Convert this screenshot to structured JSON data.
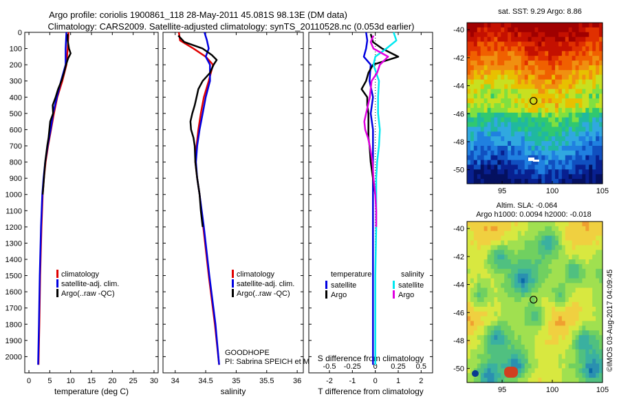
{
  "header": {
    "title_line1": "Argo profile: coriolis 1900861_118 28-May-2011 45.081S 98.13E (DM data)",
    "title_line2": "Climatology: CARS2009. Satellite-adjusted climatology: synTS_20110528.nc (0.053d earlier)"
  },
  "chart_data": [
    {
      "id": "temperature",
      "type": "line",
      "xlabel": "temperature (deg C)",
      "ylabel": "",
      "xlim": [
        -1,
        31
      ],
      "ylim": [
        2100,
        0
      ],
      "x_ticks": [
        0,
        5,
        10,
        15,
        20,
        25,
        30
      ],
      "y_ticks": [
        0,
        100,
        200,
        300,
        400,
        500,
        600,
        700,
        800,
        900,
        1000,
        1100,
        1200,
        1300,
        1400,
        1500,
        1600,
        1700,
        1800,
        1900,
        2000
      ],
      "legend": [
        "climatology",
        "satellite-adj. clim.",
        "Argo(..raw -QC)"
      ],
      "series": [
        {
          "name": "climatology",
          "color": "#e00000",
          "depth": [
            0,
            100,
            200,
            300,
            400,
            500,
            600,
            700,
            800,
            900,
            1000,
            1200,
            1500,
            1800,
            2050
          ],
          "values": [
            9.5,
            9.3,
            9.0,
            8.0,
            6.8,
            6.0,
            5.3,
            4.6,
            4.0,
            3.6,
            3.3,
            3.0,
            2.7,
            2.5,
            2.3
          ]
        },
        {
          "name": "satellite-adj. clim.",
          "color": "#0000e0",
          "depth": [
            0,
            100,
            200,
            300,
            400,
            500,
            600,
            700,
            800,
            900,
            1000,
            1200,
            1500,
            1800,
            2050
          ],
          "values": [
            9.0,
            8.8,
            8.8,
            7.7,
            6.7,
            5.8,
            5.2,
            4.5,
            3.9,
            3.5,
            3.2,
            2.9,
            2.6,
            2.4,
            2.2
          ]
        },
        {
          "name": "Argo(..raw -QC)",
          "color": "#000000",
          "depth": [
            10,
            50,
            100,
            130,
            160,
            200,
            250,
            300,
            350,
            400,
            450,
            500,
            550,
            600,
            650,
            700,
            800,
            900,
            1000
          ],
          "values": [
            9.3,
            9.3,
            9.6,
            10.0,
            9.4,
            8.9,
            8.4,
            7.8,
            7.0,
            6.4,
            5.7,
            5.8,
            5.1,
            4.9,
            4.7,
            4.4,
            3.9,
            3.6,
            3.3
          ]
        }
      ]
    },
    {
      "id": "salinity",
      "type": "line",
      "xlabel": "salinity",
      "ylabel": "",
      "xlim": [
        33.8,
        36.1
      ],
      "ylim": [
        2100,
        0
      ],
      "x_ticks": [
        34,
        34.5,
        35,
        35.5,
        36
      ],
      "legend": [
        "climatology",
        "satellite-adj. clim.",
        "Argo(..raw -QC)"
      ],
      "annotations": [
        "GOODHOPE",
        "PI: Sabrina SPEICH et Michel ARHAN"
      ],
      "series": [
        {
          "name": "climatology",
          "color": "#e00000",
          "depth": [
            0,
            50,
            100,
            150,
            200,
            300,
            400,
            500,
            600,
            700,
            800,
            900,
            1000,
            1200,
            1500,
            1800,
            2050
          ],
          "values": [
            34.06,
            34.08,
            34.3,
            34.5,
            34.62,
            34.55,
            34.47,
            34.42,
            34.38,
            34.35,
            34.33,
            34.36,
            34.4,
            34.46,
            34.55,
            34.65,
            34.72
          ]
        },
        {
          "name": "satellite-adj. clim.",
          "color": "#0000e0",
          "depth": [
            0,
            50,
            100,
            150,
            200,
            300,
            400,
            500,
            600,
            700,
            800,
            900,
            1000,
            1200,
            1500,
            1800,
            2050
          ],
          "values": [
            34.48,
            34.52,
            34.55,
            34.5,
            34.57,
            34.57,
            34.5,
            34.45,
            34.4,
            34.36,
            34.34,
            34.36,
            34.4,
            34.47,
            34.56,
            34.66,
            34.72
          ]
        },
        {
          "name": "Argo(..raw -QC)",
          "color": "#000000",
          "depth": [
            20,
            60,
            100,
            140,
            170,
            200,
            250,
            300,
            350,
            400,
            450,
            500,
            550,
            600,
            650,
            700,
            800,
            900,
            1000,
            1100,
            1200
          ],
          "values": [
            34.05,
            34.15,
            34.45,
            34.6,
            34.68,
            34.63,
            34.57,
            34.45,
            34.38,
            34.35,
            34.32,
            34.28,
            34.25,
            34.26,
            34.3,
            34.32,
            34.33,
            34.36,
            34.4,
            34.42,
            34.45
          ]
        }
      ]
    },
    {
      "id": "differences",
      "type": "line",
      "xlabel": "T difference from climatology",
      "top_label": "S difference from climatology",
      "xlim": [
        -2.9,
        2.5
      ],
      "ylim": [
        2100,
        0
      ],
      "x_ticks": [
        -2,
        -1,
        0,
        1,
        2
      ],
      "top_ticks": [
        "-0.5",
        "-0.25",
        "0",
        "0.25",
        "0.5"
      ],
      "legend_headers": [
        "temperature",
        "salinity"
      ],
      "legend": [
        "satellite",
        "Argo",
        "satellite",
        "Argo"
      ],
      "series": [
        {
          "name": "satellite",
          "group": "temperature",
          "color": "#0000e0",
          "depth": [
            0,
            50,
            100,
            150,
            200,
            300,
            400,
            500,
            600,
            700,
            800,
            900,
            1000,
            1200,
            1500,
            1800,
            2050
          ],
          "values": [
            -0.4,
            -0.35,
            -0.4,
            -0.5,
            -0.2,
            -0.25,
            -0.1,
            -0.2,
            -0.1,
            -0.1,
            -0.1,
            -0.1,
            -0.1,
            -0.1,
            -0.1,
            -0.1,
            -0.1
          ]
        },
        {
          "name": "Argo",
          "group": "temperature",
          "color": "#000000",
          "depth": [
            10,
            60,
            100,
            150,
            200,
            250,
            300,
            350,
            400,
            450,
            500,
            550,
            600,
            650,
            700,
            800,
            900,
            1000
          ],
          "values": [
            -0.2,
            -0.1,
            0.3,
            1.0,
            -0.1,
            -0.3,
            -0.4,
            -0.6,
            -0.35,
            -0.35,
            -0.3,
            -0.3,
            -0.3,
            -0.3,
            -0.25,
            -0.2,
            -0.1,
            0.0
          ]
        },
        {
          "name": "satellite",
          "group": "salinity",
          "color": "#00e8f0",
          "depth": [
            0,
            50,
            100,
            150,
            200,
            300,
            400,
            500,
            600,
            700,
            800,
            900,
            1000,
            1200,
            1500,
            1800,
            2050
          ],
          "values": [
            0.2,
            0.23,
            0.12,
            0.0,
            -0.02,
            0.04,
            0.03,
            0.03,
            0.05,
            0.04,
            0.02,
            0.01,
            0.01,
            0.01,
            0.0,
            0.0,
            0.0
          ]
        },
        {
          "name": "Argo",
          "group": "salinity",
          "color": "#e000e0",
          "depth": [
            20,
            60,
            100,
            150,
            200,
            250,
            300,
            350,
            400,
            450,
            500,
            550,
            600,
            650,
            700,
            800,
            900,
            1000,
            1100,
            1200
          ],
          "values": [
            -0.02,
            -0.05,
            -0.02,
            0.14,
            0.05,
            0.02,
            -0.04,
            -0.05,
            -0.06,
            -0.08,
            -0.1,
            -0.12,
            -0.11,
            -0.08,
            -0.06,
            -0.03,
            -0.02,
            0.0,
            0.01,
            0.01
          ]
        }
      ]
    },
    {
      "id": "sst_map",
      "type": "heatmap",
      "title": "sat. SST: 9.29 Argo: 8.86",
      "xlim": [
        91.5,
        105
      ],
      "ylim": [
        -51,
        -39.5
      ],
      "x_ticks": [
        95,
        100,
        105
      ],
      "y_ticks": [
        -40,
        -42,
        -44,
        -46,
        -48,
        -50
      ],
      "marker": {
        "lon": 98.13,
        "lat": -45.081
      }
    },
    {
      "id": "sla_map",
      "type": "heatmap",
      "title": "Altim. SLA: -0.064",
      "subtitle": "Argo h1000: 0.0094 h2000: -0.018",
      "xlim": [
        91.5,
        105
      ],
      "ylim": [
        -51,
        -39.5
      ],
      "x_ticks": [
        95,
        100,
        105
      ],
      "y_ticks": [
        -40,
        -42,
        -44,
        -46,
        -48,
        -50
      ],
      "marker": {
        "lon": 98.13,
        "lat": -45.081
      }
    }
  ],
  "footer": {
    "credit": "©IMOS 03-Aug-2017 04:09:45"
  }
}
